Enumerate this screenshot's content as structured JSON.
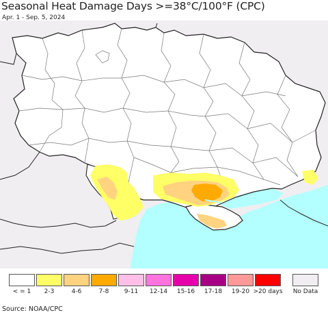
{
  "header": {
    "title": "Seasonal Heat Damage Days >=38°C/100°F (CPC)",
    "subtitle": "Apr. 1 - Sep. 5, 2024"
  },
  "legend": {
    "items": [
      {
        "label": "< = 1",
        "color": "#ffffff"
      },
      {
        "label": "2-3",
        "color": "#ffff66"
      },
      {
        "label": "4-6",
        "color": "#ffd37f"
      },
      {
        "label": "7-8",
        "color": "#ffaa00"
      },
      {
        "label": "9-11",
        "color": "#ffbfe8"
      },
      {
        "label": "12-14",
        "color": "#ff73df"
      },
      {
        "label": "15-16",
        "color": "#e600a9"
      },
      {
        "label": "17-18",
        "color": "#a80084"
      },
      {
        "label": "19-20",
        "color": "#ff9999"
      },
      {
        "label": ">20 days",
        "color": "#ff0000"
      }
    ],
    "nodata": {
      "label": "No Data",
      "color": "#f0eef0"
    }
  },
  "map": {
    "colors": {
      "sea": "#b3ffff",
      "land": "#ffffff",
      "outside": "#f0eef0",
      "border": "#222222",
      "admin": "#777777"
    }
  },
  "source": "Source: NOAA/CPC"
}
